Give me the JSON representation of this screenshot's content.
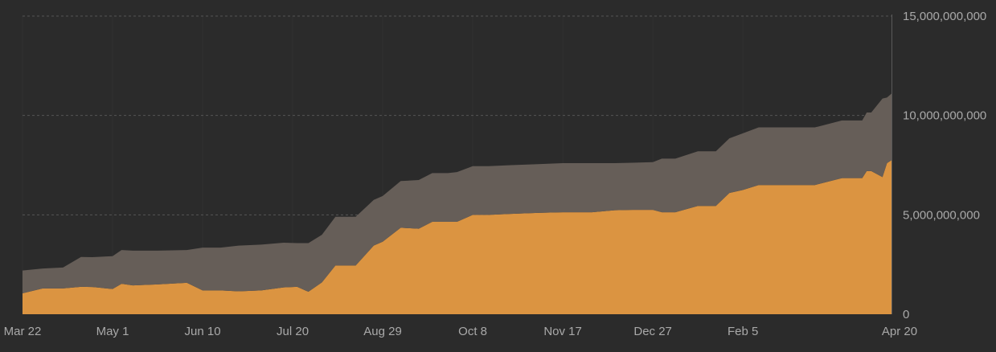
{
  "chart_data": {
    "type": "area",
    "stacked": true,
    "title": "",
    "xlabel": "",
    "ylabel": "",
    "x_tick_labels": [
      "Mar 22",
      "May 1",
      "Jun 10",
      "Jul 20",
      "Aug 29",
      "Oct 8",
      "Nov 17",
      "Dec 27",
      "Feb 5",
      "Apr 20"
    ],
    "y_tick_labels": [
      "0",
      "5,000,000,000",
      "10,000,000,000",
      "15,000,000,000"
    ],
    "ylim": [
      0,
      15000000000
    ],
    "grid": "horizontal-dashed",
    "y_axis_side": "right",
    "colors": {
      "background": "#2b2b2b",
      "lower_area": "#db9441",
      "upper_area": "#665e58",
      "grid": "#555555",
      "vertical_grid": "#313131",
      "axis": "#5a5a5a",
      "text": "#a9a9a9"
    },
    "x_dates": [
      "2023-03-22",
      "2023-03-31",
      "2023-04-09",
      "2023-04-17",
      "2023-04-22",
      "2023-05-01",
      "2023-05-05",
      "2023-05-10",
      "2023-05-21",
      "2023-06-03",
      "2023-06-10",
      "2023-06-18",
      "2023-06-26",
      "2023-07-06",
      "2023-07-16",
      "2023-07-22",
      "2023-07-27",
      "2023-08-02",
      "2023-08-08",
      "2023-08-13",
      "2023-08-17",
      "2023-08-25",
      "2023-08-29",
      "2023-09-06",
      "2023-09-14",
      "2023-09-20",
      "2023-09-27",
      "2023-10-01",
      "2023-10-08",
      "2023-10-15",
      "2023-10-25",
      "2023-11-06",
      "2023-11-17",
      "2023-11-30",
      "2023-12-07",
      "2023-12-10",
      "2023-12-18",
      "2023-12-27",
      "2023-12-31",
      "2024-01-06",
      "2024-01-16",
      "2024-01-24",
      "2024-01-30",
      "2024-02-05",
      "2024-02-12",
      "2024-03-08",
      "2024-03-20",
      "2024-03-29",
      "2024-03-31",
      "2024-04-02",
      "2024-04-07",
      "2024-04-09",
      "2024-04-11"
    ],
    "series": [
      {
        "values": [
          1050000000,
          1300000000,
          1300000000,
          1380000000,
          1370000000,
          1270000000,
          1530000000,
          1450000000,
          1500000000,
          1580000000,
          1200000000,
          1200000000,
          1150000000,
          1200000000,
          1350000000,
          1380000000,
          1130000000,
          1600000000,
          2450000000,
          2450000000,
          2450000000,
          3450000000,
          3650000000,
          4350000000,
          4300000000,
          4650000000,
          4650000000,
          4650000000,
          5000000000,
          5000000000,
          5050000000,
          5100000000,
          5130000000,
          5130000000,
          5200000000,
          5230000000,
          5250000000,
          5250000000,
          5130000000,
          5130000000,
          5450000000,
          5450000000,
          6100000000,
          6250000000,
          6500000000,
          6500000000,
          6850000000,
          6850000000,
          7200000000,
          7200000000,
          6900000000,
          7600000000,
          7750000000
        ]
      },
      {
        "values": [
          1150000000,
          1000000000,
          1050000000,
          1500000000,
          1500000000,
          1650000000,
          1700000000,
          1750000000,
          1700000000,
          1650000000,
          2150000000,
          2150000000,
          2300000000,
          2300000000,
          2250000000,
          2200000000,
          2450000000,
          2400000000,
          2450000000,
          2450000000,
          2450000000,
          2300000000,
          2300000000,
          2350000000,
          2450000000,
          2450000000,
          2450000000,
          2500000000,
          2450000000,
          2450000000,
          2450000000,
          2450000000,
          2470000000,
          2470000000,
          2400000000,
          2370000000,
          2370000000,
          2400000000,
          2700000000,
          2700000000,
          2750000000,
          2750000000,
          2750000000,
          2850000000,
          2900000000,
          2900000000,
          2900000000,
          2900000000,
          2950000000,
          2950000000,
          3950000000,
          3300000000,
          3350000000
        ]
      }
    ]
  }
}
